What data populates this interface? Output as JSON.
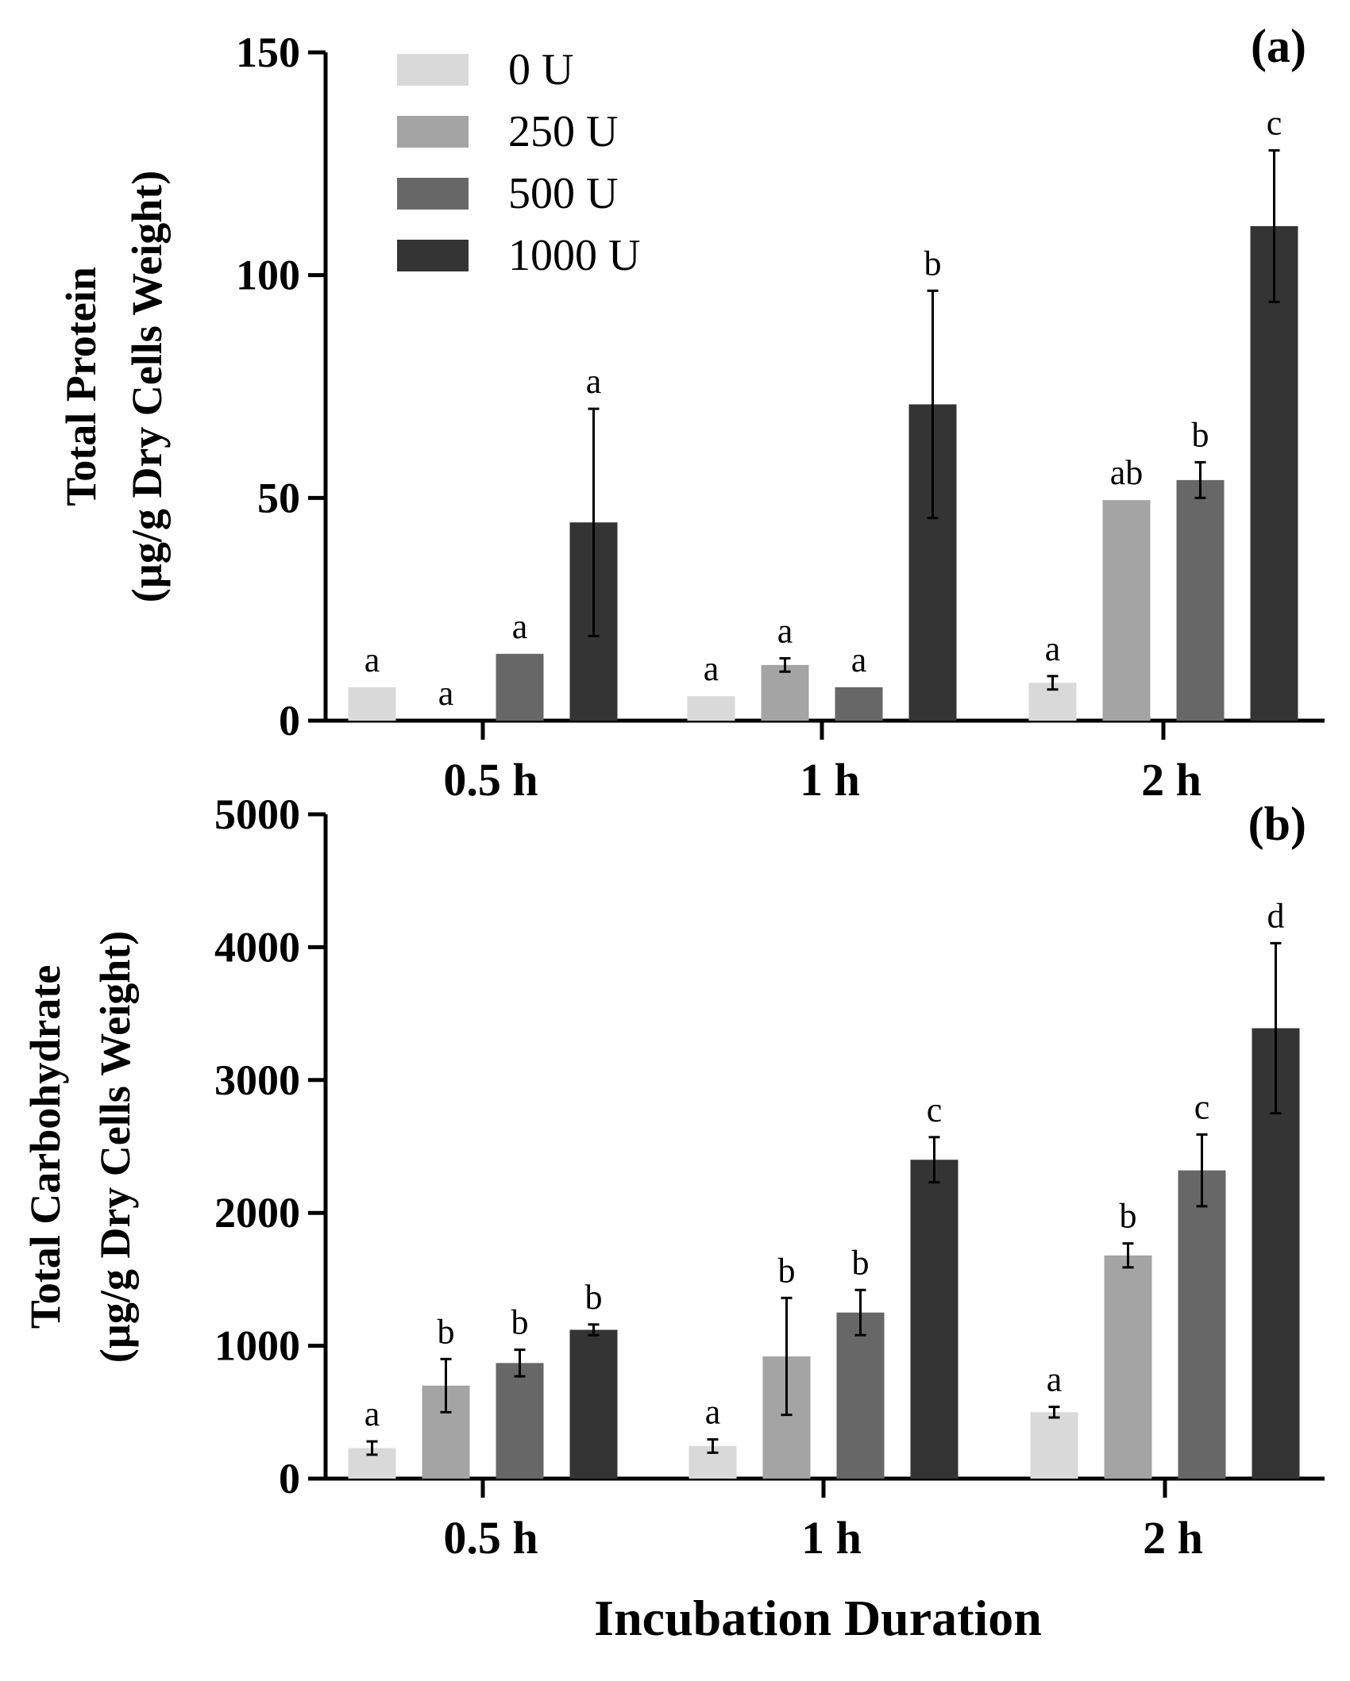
{
  "figure": {
    "xaxis_title": "Incubation Duration"
  },
  "chart_data": [
    {
      "type": "bar",
      "panel_label": "(a)",
      "title": "",
      "ylabel_line1": "Total Protein",
      "ylabel_line2": "(µg/g Dry Cells Weight)",
      "xlabel": "",
      "categories": [
        "0.5 h",
        "1 h",
        "2 h"
      ],
      "ylim": [
        0,
        150
      ],
      "yticks": [
        0,
        50,
        100,
        150
      ],
      "legend_position": "top-left",
      "series": [
        {
          "name": "0 U",
          "color": "#d9d9d9",
          "values": [
            7.5,
            5.5,
            8.5
          ],
          "errors": [
            0,
            0,
            1.5
          ],
          "labels": [
            "a",
            "a",
            "a"
          ]
        },
        {
          "name": "250 U",
          "color": "#a4a4a4",
          "values": [
            0,
            12.5,
            49.5
          ],
          "errors": [
            0,
            1.5,
            0
          ],
          "labels": [
            "a",
            "a",
            "ab"
          ]
        },
        {
          "name": "500 U",
          "color": "#676767",
          "values": [
            15,
            7.5,
            54
          ],
          "errors": [
            0,
            0,
            4
          ],
          "labels": [
            "a",
            "a",
            "b"
          ]
        },
        {
          "name": "1000 U",
          "color": "#343434",
          "values": [
            44.5,
            71,
            111
          ],
          "errors": [
            25.5,
            25.5,
            17
          ],
          "labels": [
            "a",
            "b",
            "c"
          ]
        }
      ]
    },
    {
      "type": "bar",
      "panel_label": "(b)",
      "title": "",
      "ylabel_line1": "Total Carbohydrate",
      "ylabel_line2": "(µg/g Dry Cells Weight)",
      "xlabel": "",
      "categories": [
        "0.5 h",
        "1 h",
        "2 h"
      ],
      "ylim": [
        0,
        5000
      ],
      "yticks": [
        0,
        1000,
        2000,
        3000,
        4000,
        5000
      ],
      "legend_position": "none",
      "series": [
        {
          "name": "0 U",
          "color": "#d9d9d9",
          "values": [
            230,
            245,
            500
          ],
          "errors": [
            50,
            50,
            40
          ],
          "labels": [
            "a",
            "a",
            "a"
          ]
        },
        {
          "name": "250 U",
          "color": "#a4a4a4",
          "values": [
            700,
            920,
            1680
          ],
          "errors": [
            200,
            440,
            90
          ],
          "labels": [
            "b",
            "b",
            "b"
          ]
        },
        {
          "name": "500 U",
          "color": "#676767",
          "values": [
            870,
            1250,
            2320
          ],
          "errors": [
            100,
            170,
            270
          ],
          "labels": [
            "b",
            "b",
            "c"
          ]
        },
        {
          "name": "1000 U",
          "color": "#343434",
          "values": [
            1120,
            2400,
            3390
          ],
          "errors": [
            40,
            170,
            640
          ],
          "labels": [
            "b",
            "c",
            "d"
          ]
        }
      ]
    }
  ]
}
